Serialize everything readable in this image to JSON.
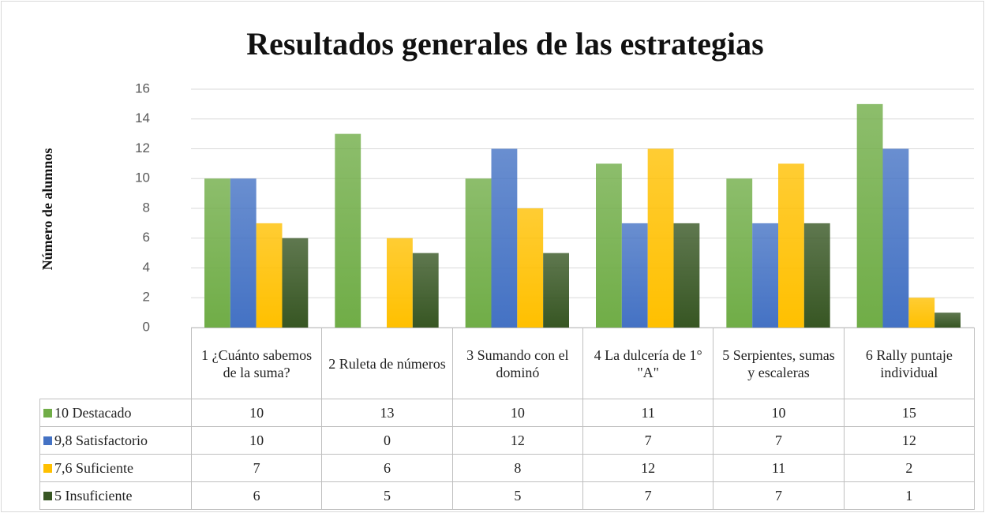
{
  "chart_data": {
    "type": "bar",
    "title": "Resultados generales de las estrategias",
    "y_label": "Número de alumnos",
    "categories": [
      "1 ¿Cuánto sabemos de la suma?",
      "2 Ruleta de números",
      "3 Sumando con el dominó",
      "4 La dulcería de 1° \"A\"",
      "5 Serpientes, sumas y escaleras",
      "6 Rally puntaje individual"
    ],
    "series": [
      {
        "name": "10 Destacado",
        "color": "#70ad47",
        "values": [
          10,
          13,
          10,
          11,
          10,
          15
        ]
      },
      {
        "name": "9,8 Satisfactorio",
        "color": "#4472c4",
        "values": [
          10,
          0,
          12,
          7,
          7,
          12
        ]
      },
      {
        "name": "7,6 Suficiente",
        "color": "#ffc000",
        "values": [
          7,
          6,
          8,
          12,
          11,
          2
        ]
      },
      {
        "name": "5 Insuficiente",
        "color": "#375623",
        "values": [
          6,
          5,
          5,
          7,
          7,
          1
        ]
      }
    ],
    "ylim": [
      0,
      16
    ],
    "yticks": [
      0,
      2,
      4,
      6,
      8,
      10,
      12,
      14,
      16
    ],
    "grid": true
  }
}
